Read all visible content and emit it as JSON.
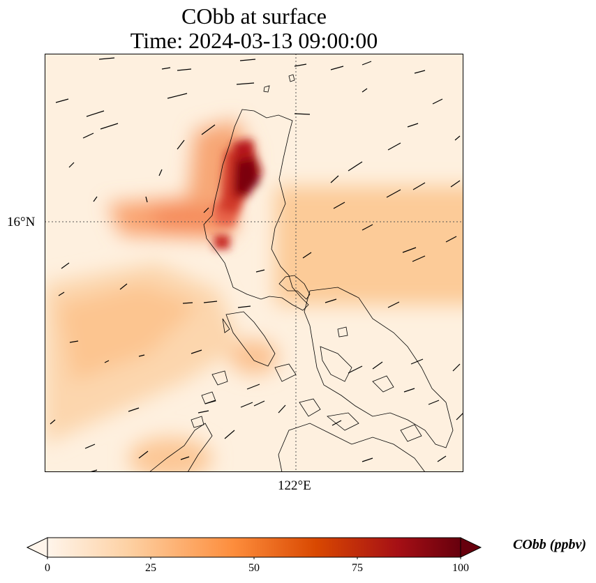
{
  "title": {
    "line1": "CObb at surface",
    "line2": "Time: 2024-03-13 09:00:00"
  },
  "axes": {
    "lat_label": "16°N",
    "lon_label": "122°E"
  },
  "colorbar": {
    "label": "CObb (ppbv)",
    "min": 0,
    "max": 100,
    "ticks": [
      "0",
      "25",
      "50",
      "75",
      "100"
    ],
    "colors": [
      "#fff5eb",
      "#fdd0a2",
      "#fd8d3c",
      "#d94801",
      "#a50f15",
      "#67000d"
    ]
  },
  "map": {
    "graticule_color": "#555555",
    "coast_color": "#000000",
    "wind_arrow_color": "#000000"
  }
}
